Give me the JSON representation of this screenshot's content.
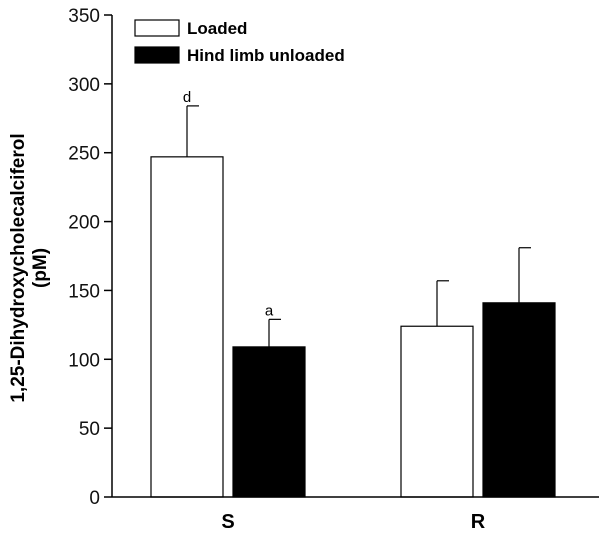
{
  "chart_data": {
    "type": "bar",
    "title": "",
    "xlabel": "",
    "ylabel": "1,25-Dihydroxycholecalciferol",
    "ylabel_unit": "(pM)",
    "ylim": [
      0,
      350
    ],
    "yticks": [
      0,
      50,
      100,
      150,
      200,
      250,
      300,
      350
    ],
    "categories": [
      "S",
      "R"
    ],
    "series": [
      {
        "name": "Loaded",
        "color": "#ffffff",
        "values": [
          247,
          124
        ],
        "errors": [
          37,
          33
        ],
        "annotations": [
          "d",
          ""
        ]
      },
      {
        "name": "Hind limb unloaded",
        "color": "#000000",
        "values": [
          109,
          141
        ],
        "errors": [
          20,
          40
        ],
        "annotations": [
          "a",
          ""
        ]
      }
    ],
    "legend_position": "top-left",
    "grid": false
  }
}
